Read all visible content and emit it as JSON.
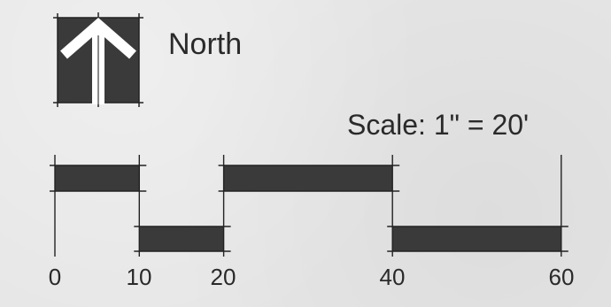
{
  "north_label": "North",
  "scale_label": "Scale: 1\" = 20'",
  "scale_bar": {
    "ticks": [
      "0",
      "10",
      "20",
      "40",
      "60"
    ],
    "segments": [
      {
        "from": 0,
        "to": 10,
        "row": "upper"
      },
      {
        "from": 10,
        "to": 20,
        "row": "lower"
      },
      {
        "from": 20,
        "to": 40,
        "row": "upper"
      },
      {
        "from": 40,
        "to": 60,
        "row": "lower"
      }
    ]
  },
  "colors": {
    "fill": "#3a3a3a",
    "line": "#222222",
    "arrow": "#ffffff"
  }
}
